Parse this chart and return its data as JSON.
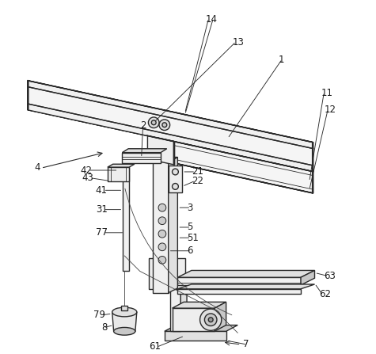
{
  "bg_color": "#ffffff",
  "line_color": "#2a2a2a",
  "label_color": "#1a1a1a",
  "figsize": [
    4.75,
    4.47
  ],
  "dpi": 100,
  "lw_main": 1.0,
  "lw_thin": 0.6,
  "fc_light": "#f0f0f0",
  "fc_mid": "#e0e0e0",
  "fc_dark": "#c8c8c8"
}
